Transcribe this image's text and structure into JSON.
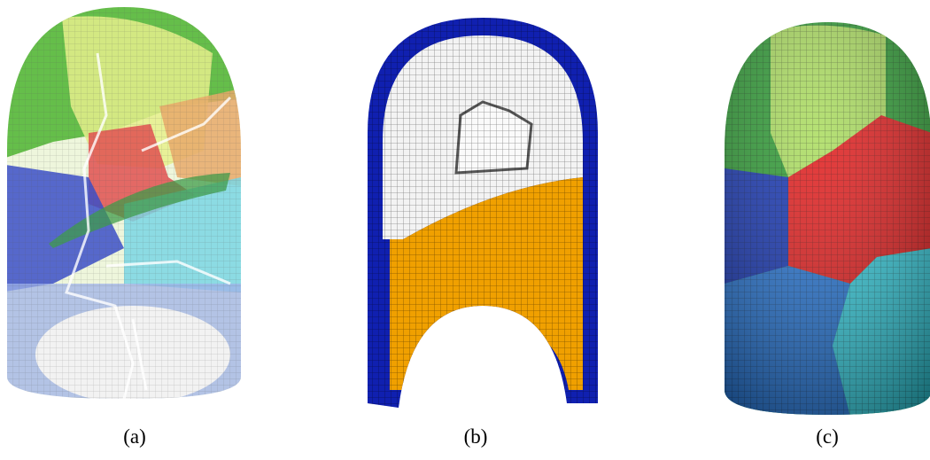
{
  "figure": {
    "panels": [
      {
        "label": "(a)"
      },
      {
        "label": "(b)"
      },
      {
        "label": "(c)"
      }
    ]
  }
}
